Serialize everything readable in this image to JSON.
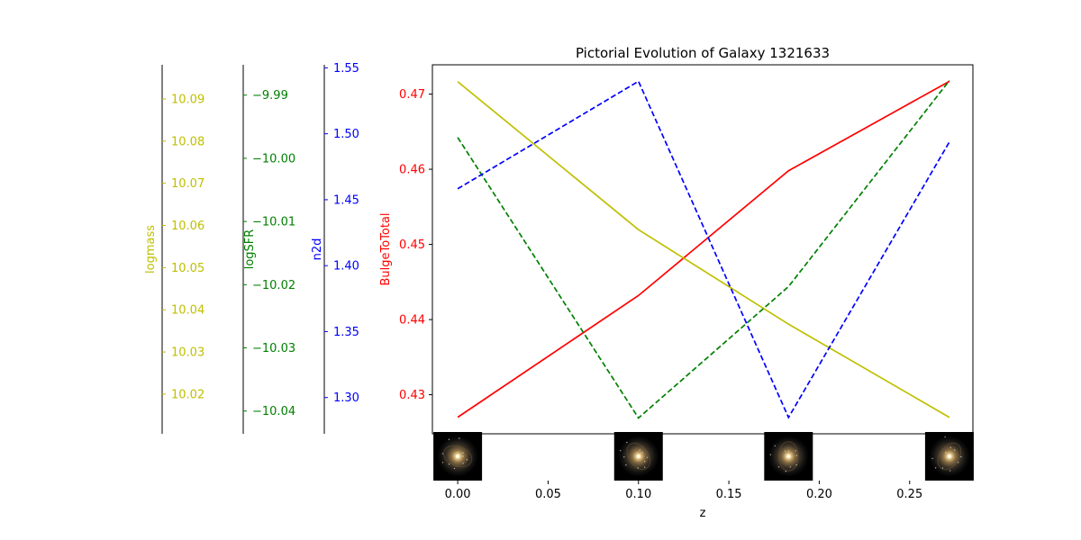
{
  "chart_data": {
    "type": "line",
    "title": "Pictorial Evolution of Galaxy 1321633",
    "xlabel": "z",
    "x": [
      0.0,
      0.1,
      0.183,
      0.272
    ],
    "xlim": [
      -0.014,
      0.285
    ],
    "xticks": [
      "0.00",
      "0.05",
      "0.10",
      "0.15",
      "0.20",
      "0.25"
    ],
    "series": [
      {
        "key": "btot",
        "name": "BulgeToTotal",
        "axis_label": "BulgeToTotal",
        "color": "#ff0000",
        "dash": false,
        "values": [
          0.427,
          0.4432,
          0.4598,
          0.4717
        ],
        "ylim": [
          0.4248,
          0.4739
        ],
        "ticks": [
          "0.43",
          "0.44",
          "0.45",
          "0.46",
          "0.47"
        ]
      },
      {
        "key": "logmass",
        "name": "logmass",
        "axis_label": "logmass",
        "color": "#bfbf00",
        "dash": false,
        "values": [
          10.0941,
          10.059,
          10.0366,
          10.0145
        ],
        "ylim": [
          10.0106,
          10.0981
        ],
        "ticks": [
          "10.02",
          "10.03",
          "10.04",
          "10.05",
          "10.06",
          "10.07",
          "10.08",
          "10.09"
        ]
      },
      {
        "key": "logsfr",
        "name": "logSFR",
        "axis_label": "logSFR",
        "color": "#008000",
        "dash": true,
        "values": [
          -9.9967,
          -10.0411,
          -10.0203,
          -9.9877
        ],
        "ylim": [
          -10.0436,
          -9.9852
        ],
        "ticks": [
          "−10.04",
          "−10.03",
          "−10.02",
          "−10.01",
          "−10.00",
          "−9.99"
        ]
      },
      {
        "key": "n2d",
        "name": "n2d",
        "axis_label": "n2d",
        "color": "#0000ff",
        "dash": true,
        "values": [
          1.4583,
          1.5398,
          1.2849,
          1.4938
        ],
        "ylim": [
          1.2725,
          1.5523
        ],
        "ticks": [
          "1.30",
          "1.35",
          "1.40",
          "1.45",
          "1.50",
          "1.55"
        ]
      }
    ],
    "thumbnails": [
      {
        "z": 0.0,
        "name": "galaxy-thumbnail-1"
      },
      {
        "z": 0.1,
        "name": "galaxy-thumbnail-2"
      },
      {
        "z": 0.183,
        "name": "galaxy-thumbnail-3"
      },
      {
        "z": 0.272,
        "name": "galaxy-thumbnail-4"
      }
    ],
    "grid": false
  }
}
